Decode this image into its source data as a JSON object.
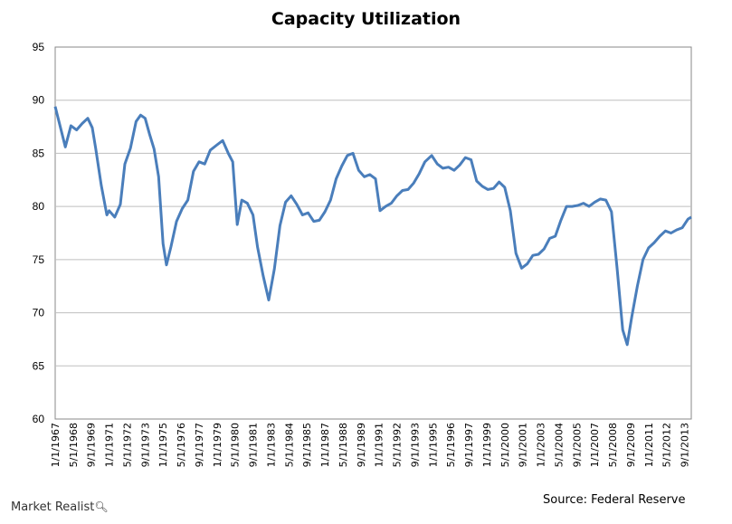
{
  "chart_data": {
    "type": "line",
    "title": "Capacity Utilization",
    "xlabel": "",
    "ylabel": "",
    "ylim": [
      60,
      95
    ],
    "yticks": [
      60,
      65,
      70,
      75,
      80,
      85,
      90,
      95
    ],
    "x_tick_labels": [
      "1/1/1967",
      "5/1/1968",
      "9/1/1969",
      "1/1/1971",
      "5/1/1972",
      "9/1/1973",
      "1/1/1975",
      "5/1/1976",
      "9/1/1977",
      "1/1/1979",
      "5/1/1980",
      "9/1/1981",
      "1/1/1983",
      "5/1/1984",
      "9/1/1985",
      "1/1/1987",
      "5/1/1988",
      "9/1/1989",
      "1/1/1991",
      "5/1/1992",
      "9/1/1993",
      "1/1/1995",
      "5/1/1996",
      "9/1/1997",
      "1/1/1999",
      "5/1/2000",
      "9/1/2001",
      "1/1/2003",
      "5/1/2004",
      "9/1/2005",
      "1/1/2007",
      "5/1/2008",
      "9/1/2009",
      "1/1/2011",
      "5/1/2012",
      "9/1/2013"
    ],
    "grid": true,
    "legend": "none",
    "line_color": "#4a7ebb",
    "series": [
      {
        "x": [
          "1967-01",
          "1967-06",
          "1967-10",
          "1968-03",
          "1968-08",
          "1969-01",
          "1969-06",
          "1969-10",
          "1970-01",
          "1970-06",
          "1970-11",
          "1971-01",
          "1971-06",
          "1971-11",
          "1972-03",
          "1972-08",
          "1973-01",
          "1973-05",
          "1973-09",
          "1974-01",
          "1974-05",
          "1974-09",
          "1975-01",
          "1975-04",
          "1975-08",
          "1976-01",
          "1976-06",
          "1976-11",
          "1977-04",
          "1977-09",
          "1978-02",
          "1978-07",
          "1979-01",
          "1979-06",
          "1979-11",
          "1980-03",
          "1980-07",
          "1980-11",
          "1981-04",
          "1981-09",
          "1982-01",
          "1982-06",
          "1982-11",
          "1983-04",
          "1983-09",
          "1984-02",
          "1984-07",
          "1984-12",
          "1985-05",
          "1985-10",
          "1986-03",
          "1986-08",
          "1987-01",
          "1987-06",
          "1987-11",
          "1988-04",
          "1988-09",
          "1989-02",
          "1989-07",
          "1989-12",
          "1990-05",
          "1990-10",
          "1991-02",
          "1991-07",
          "1991-12",
          "1992-05",
          "1992-10",
          "1993-03",
          "1993-08",
          "1994-01",
          "1994-06",
          "1994-12",
          "1995-05",
          "1995-10",
          "1996-03",
          "1996-08",
          "1997-01",
          "1997-06",
          "1997-11",
          "1998-04",
          "1998-09",
          "1999-02",
          "1999-07",
          "1999-12",
          "2000-05",
          "2000-10",
          "2001-03",
          "2001-08",
          "2002-01",
          "2002-06",
          "2002-11",
          "2003-04",
          "2003-09",
          "2004-02",
          "2004-07",
          "2004-12",
          "2005-05",
          "2005-10",
          "2006-03",
          "2006-08",
          "2007-01",
          "2007-06",
          "2007-11",
          "2008-04",
          "2008-09",
          "2009-02",
          "2009-06",
          "2009-10",
          "2010-03",
          "2010-08",
          "2011-01",
          "2011-06",
          "2011-11",
          "2012-04",
          "2012-09",
          "2013-02",
          "2013-07",
          "2013-12",
          "2014-03"
        ],
        "y": [
          89.4,
          87.3,
          85.6,
          87.6,
          87.2,
          87.8,
          88.3,
          87.4,
          85.5,
          82.0,
          79.2,
          79.6,
          79.0,
          80.2,
          84.0,
          85.5,
          88.0,
          88.6,
          88.3,
          86.8,
          85.4,
          82.8,
          76.5,
          74.5,
          76.2,
          78.6,
          79.8,
          80.6,
          83.3,
          84.2,
          84.0,
          85.3,
          85.8,
          86.2,
          85.0,
          84.2,
          78.3,
          80.6,
          80.3,
          79.2,
          76.2,
          73.5,
          71.2,
          74.1,
          78.2,
          80.4,
          81.0,
          80.2,
          79.2,
          79.4,
          78.6,
          78.7,
          79.5,
          80.6,
          82.6,
          83.8,
          84.8,
          85.0,
          83.4,
          82.8,
          83.0,
          82.6,
          79.6,
          80.0,
          80.3,
          81.0,
          81.5,
          81.6,
          82.2,
          83.1,
          84.2,
          84.8,
          84.0,
          83.6,
          83.7,
          83.4,
          83.9,
          84.6,
          84.4,
          82.4,
          81.9,
          81.6,
          81.7,
          82.3,
          81.8,
          79.6,
          75.6,
          74.2,
          74.6,
          75.4,
          75.5,
          76.0,
          77.0,
          77.2,
          78.7,
          80.0,
          80.0,
          80.1,
          80.3,
          80.0,
          80.4,
          80.7,
          80.6,
          79.5,
          74.2,
          68.4,
          67.0,
          69.6,
          72.5,
          75.0,
          76.1,
          76.6,
          77.2,
          77.7,
          77.5,
          77.8,
          78.0,
          78.8,
          79.0
        ]
      }
    ]
  },
  "footer": {
    "brand": "Market Realist",
    "brand_icon": "magnifier-icon",
    "source": "Source: Federal Reserve"
  }
}
